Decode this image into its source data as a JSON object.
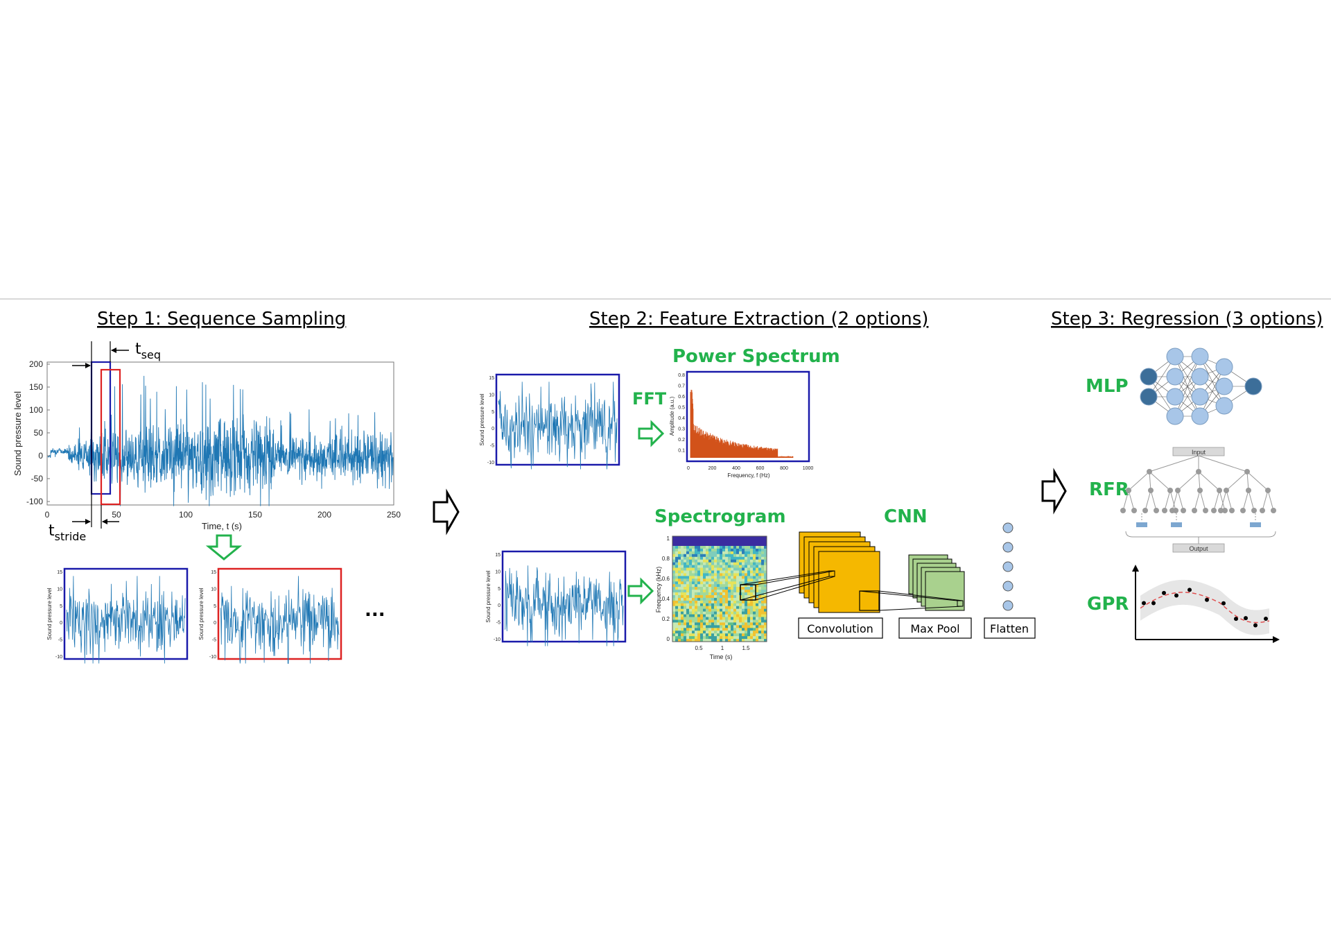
{
  "steps": {
    "step1": "Step 1: Sequence Sampling",
    "step2": "Step 2: Feature Extraction (2 options)",
    "step3": "Step 3: Regression (3 options)"
  },
  "signal_plot": {
    "ylabel": "Sound pressure level",
    "xlabel": "Time, t (s)",
    "y_ticks": [
      "200",
      "150",
      "100",
      "50",
      "0",
      "-50",
      "-100"
    ],
    "x_ticks": [
      "0",
      "50",
      "100",
      "150",
      "200",
      "250"
    ],
    "t_seq": "t",
    "t_seq_sub": "seq",
    "t_stride": "t",
    "t_stride_sub": "stride"
  },
  "small_plot": {
    "ylabel": "Sound pressure level",
    "y_ticks": [
      "15",
      "10",
      "5",
      "0",
      "-5",
      "-10"
    ]
  },
  "ellipsis": "...",
  "fft": {
    "label": "FFT",
    "title": "Power Spectrum",
    "ylabel": "Amplitude (a.u.)",
    "xlabel": "Frequency, f (Hz)",
    "y_ticks": [
      "0.8",
      "0.7",
      "0.6",
      "0.5",
      "0.4",
      "0.3",
      "0.2",
      "0.1"
    ],
    "x_ticks": [
      "0",
      "200",
      "400",
      "600",
      "800",
      "1000"
    ]
  },
  "spectrogram": {
    "title": "Spectrogram",
    "ylabel": "Frequency (kHz)",
    "xlabel": "Time (s)",
    "y_ticks": [
      "1",
      "0.8",
      "0.6",
      "0.4",
      "0.2",
      "0"
    ],
    "x_ticks": [
      "0.5",
      "1",
      "1.5"
    ]
  },
  "cnn": {
    "title": "CNN",
    "convolution": "Convolution",
    "maxpool": "Max Pool",
    "flatten": "Flatten"
  },
  "regression": {
    "mlp": "MLP",
    "rfr": "RFR",
    "gpr": "GPR",
    "rfr_input": "Input",
    "rfr_output": "Output"
  },
  "colors": {
    "signal": "#1f77b4",
    "blue_box": "#1a1aaa",
    "red_box": "#dd2222",
    "green": "#22b24c",
    "spectrum": "#d2521a",
    "conv": "#f5b800",
    "pool": "#a9d18e"
  }
}
